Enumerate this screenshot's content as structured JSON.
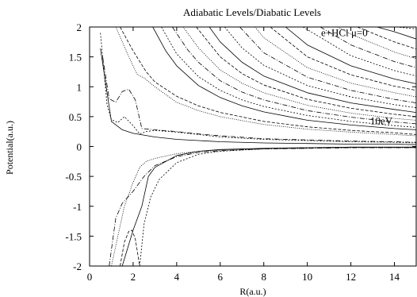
{
  "chart_data": {
    "type": "line",
    "title": "Adiabatic Levels/Diabatic Levels",
    "xlabel": "R(a.u.)",
    "ylabel": "Potential(a.u.)",
    "xlim": [
      0,
      15
    ],
    "ylim": [
      -2,
      2
    ],
    "x_ticks": [
      "0",
      "2",
      "4",
      "6",
      "8",
      "10",
      "12",
      "14"
    ],
    "y_ticks": [
      "2",
      "1.5",
      "1",
      "0.5",
      "0",
      "-0.5",
      "-1",
      "-1.5",
      "-2"
    ],
    "grid": false,
    "legend": "none",
    "annotations": [
      {
        "text": "e+HCl μ=0",
        "x": 11.7,
        "y": 1.85
      },
      {
        "text": "10eV",
        "x": 13.4,
        "y": 0.37
      }
    ],
    "series": [
      {
        "x": [
          0.5,
          1,
          1.5,
          2,
          3,
          4,
          5,
          6,
          8,
          10,
          12,
          14,
          15
        ],
        "values": [
          1.64,
          0.42,
          0.28,
          0.22,
          0.16,
          0.12,
          0.1,
          0.08,
          0.06,
          0.05,
          0.04,
          0.04,
          0.03
        ]
      },
      {
        "x": [
          0.5,
          0.8,
          1.0,
          1.3,
          1.6,
          2.0,
          2.3,
          2.6,
          3,
          4,
          5,
          6,
          8,
          10,
          12,
          14,
          15
        ],
        "values": [
          1.9,
          0.7,
          0.45,
          0.4,
          0.5,
          0.35,
          0.21,
          0.25,
          0.27,
          0.24,
          0.2,
          0.16,
          0.12,
          0.1,
          0.08,
          0.07,
          0.06
        ]
      },
      {
        "x": [
          0.6,
          0.9,
          1.2,
          1.5,
          1.8,
          2.1,
          2.4,
          3,
          4,
          5,
          6,
          8,
          10,
          12,
          14,
          15
        ],
        "values": [
          1.5,
          0.8,
          0.74,
          0.92,
          0.96,
          0.78,
          0.3,
          0.28,
          0.25,
          0.21,
          0.18,
          0.13,
          0.11,
          0.09,
          0.08,
          0.07
        ]
      },
      {
        "x": [
          1.2,
          1.8,
          2.2,
          2.5,
          3,
          4,
          5,
          6,
          8,
          10,
          12,
          14,
          15
        ],
        "values": [
          2.0,
          1.5,
          1.2,
          1.15,
          1.0,
          0.74,
          0.6,
          0.5,
          0.37,
          0.29,
          0.24,
          0.2,
          0.18
        ]
      },
      {
        "x": [
          1.4,
          2.0,
          2.6,
          3,
          4,
          5,
          6,
          8,
          10,
          12,
          14,
          15
        ],
        "values": [
          2.0,
          1.6,
          1.25,
          1.08,
          0.84,
          0.68,
          0.57,
          0.42,
          0.33,
          0.27,
          0.23,
          0.2
        ]
      },
      {
        "x": [
          2.9,
          3.5,
          4,
          5,
          6,
          7,
          8,
          10,
          12,
          14,
          15
        ],
        "values": [
          2.0,
          1.6,
          1.35,
          1.02,
          0.82,
          0.68,
          0.58,
          0.44,
          0.36,
          0.3,
          0.28
        ]
      },
      {
        "x": [
          3.3,
          4,
          5,
          6,
          7,
          8,
          10,
          12,
          14,
          15
        ],
        "values": [
          2.0,
          1.55,
          1.17,
          0.94,
          0.78,
          0.67,
          0.52,
          0.42,
          0.35,
          0.32
        ]
      },
      {
        "x": [
          3.8,
          4.5,
          5,
          6,
          7,
          8,
          10,
          12,
          14,
          15
        ],
        "values": [
          2.0,
          1.62,
          1.41,
          1.1,
          0.91,
          0.78,
          0.6,
          0.49,
          0.41,
          0.38
        ]
      },
      {
        "x": [
          4.3,
          5,
          6,
          7,
          8,
          10,
          12,
          14,
          15
        ],
        "values": [
          2.0,
          1.65,
          1.28,
          1.06,
          0.9,
          0.69,
          0.56,
          0.47,
          0.44
        ]
      },
      {
        "x": [
          4.9,
          6,
          7,
          8,
          10,
          12,
          14,
          15
        ],
        "values": [
          2.0,
          1.5,
          1.22,
          1.03,
          0.79,
          0.64,
          0.54,
          0.5
        ]
      },
      {
        "x": [
          5.5,
          6,
          7,
          8,
          10,
          12,
          14,
          15
        ],
        "values": [
          2.0,
          1.75,
          1.41,
          1.18,
          0.9,
          0.73,
          0.62,
          0.57
        ]
      },
      {
        "x": [
          6.2,
          7,
          8,
          10,
          12,
          14,
          15
        ],
        "values": [
          2.0,
          1.65,
          1.36,
          1.02,
          0.83,
          0.7,
          0.65
        ]
      },
      {
        "x": [
          6.9,
          8,
          10,
          12,
          14,
          15
        ],
        "values": [
          2.0,
          1.57,
          1.16,
          0.94,
          0.79,
          0.73
        ]
      },
      {
        "x": [
          7.6,
          8,
          10,
          12,
          14,
          15
        ],
        "values": [
          2.0,
          1.82,
          1.32,
          1.06,
          0.9,
          0.83
        ]
      },
      {
        "x": [
          8.3,
          10,
          12,
          14,
          15
        ],
        "values": [
          2.0,
          1.5,
          1.2,
          1.01,
          0.94
        ]
      },
      {
        "x": [
          9.0,
          10,
          12,
          14,
          15
        ],
        "values": [
          2.0,
          1.7,
          1.35,
          1.13,
          1.05
        ]
      },
      {
        "x": [
          9.8,
          12,
          14,
          15
        ],
        "values": [
          2.0,
          1.52,
          1.27,
          1.18
        ]
      },
      {
        "x": [
          10.6,
          12,
          14,
          15
        ],
        "values": [
          2.0,
          1.7,
          1.42,
          1.32
        ]
      },
      {
        "x": [
          11.4,
          12,
          14,
          15
        ],
        "values": [
          2.0,
          1.88,
          1.58,
          1.47
        ]
      },
      {
        "x": [
          12.3,
          14,
          15
        ],
        "values": [
          2.0,
          1.75,
          1.63
        ]
      },
      {
        "x": [
          13.2,
          14,
          15
        ],
        "values": [
          2.0,
          1.92,
          1.8
        ]
      },
      {
        "x": [
          14.1,
          15
        ],
        "values": [
          2.0,
          1.97
        ]
      },
      {
        "x": [
          0.9,
          1.2,
          1.5,
          2,
          2.5,
          3,
          4,
          5,
          6,
          8,
          10,
          12,
          14,
          15
        ],
        "values": [
          -2.0,
          -1.2,
          -0.95,
          -0.75,
          -0.5,
          -0.32,
          -0.17,
          -0.1,
          -0.07,
          -0.04,
          -0.03,
          -0.02,
          -0.02,
          -0.02
        ]
      },
      {
        "x": [
          1.0,
          1.3,
          1.6,
          2.0,
          2.3,
          2.6,
          3,
          4,
          5,
          6,
          8,
          10,
          12,
          14,
          15
        ],
        "values": [
          -2.0,
          -1.5,
          -1.0,
          -0.6,
          -0.35,
          -0.25,
          -0.2,
          -0.12,
          -0.08,
          -0.06,
          -0.04,
          -0.03,
          -0.02,
          -0.02,
          -0.02
        ]
      },
      {
        "x": [
          1.4,
          1.6,
          1.8,
          1.95,
          2.1,
          2.3
        ],
        "values": [
          -2.0,
          -1.6,
          -1.42,
          -1.4,
          -1.55,
          -2.0
        ]
      },
      {
        "x": [
          1.5,
          2.0,
          2.4,
          2.7,
          3,
          4,
          5,
          6,
          8,
          10,
          12,
          14,
          15
        ],
        "values": [
          -2.0,
          -1.4,
          -1.0,
          -0.5,
          -0.35,
          -0.15,
          -0.08,
          -0.05,
          -0.03,
          -0.02,
          -0.01,
          -0.01,
          -0.01
        ]
      },
      {
        "x": [
          2.3,
          2.5,
          2.8,
          3.2,
          4,
          5,
          6,
          8,
          10,
          12,
          14,
          15
        ],
        "values": [
          -2.0,
          -1.3,
          -0.85,
          -0.55,
          -0.27,
          -0.13,
          -0.08,
          -0.04,
          -0.02,
          -0.01,
          -0.01,
          -0.01
        ]
      }
    ]
  }
}
